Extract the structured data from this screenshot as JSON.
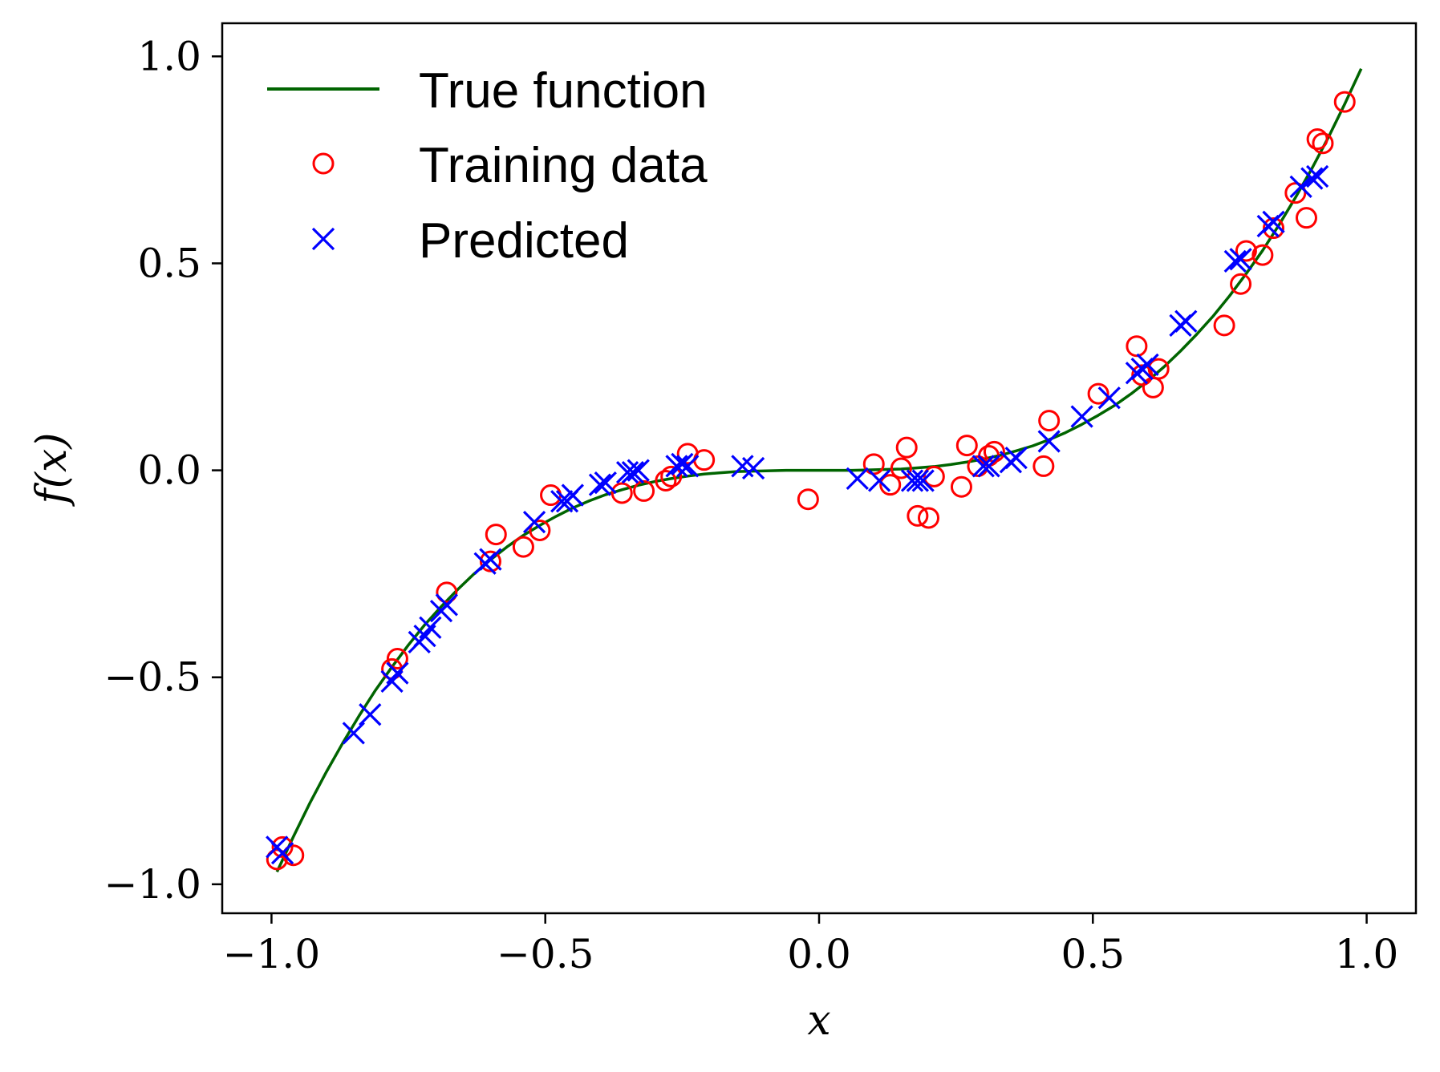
{
  "chart_data": {
    "type": "scatter",
    "title": "",
    "xlabel": "x",
    "ylabel": "f(x)",
    "xlim": [
      -1.09,
      1.09
    ],
    "ylim": [
      -1.07,
      1.08
    ],
    "xticks": [
      -1.0,
      -0.5,
      0.0,
      0.5,
      1.0
    ],
    "yticks": [
      -1.0,
      -0.5,
      0.0,
      0.5,
      1.0
    ],
    "xtick_labels": [
      "−1.0",
      "−0.5",
      "0.0",
      "0.5",
      "1.0"
    ],
    "ytick_labels": [
      "−1.0",
      "−0.5",
      "0.0",
      "0.5",
      "1.0"
    ],
    "grid": false,
    "legend_position": "top-left",
    "series": [
      {
        "name": "True function",
        "kind": "line",
        "color": "#006400",
        "x": [
          -0.99,
          -0.96,
          -0.93,
          -0.9,
          -0.87,
          -0.84,
          -0.81,
          -0.78,
          -0.75,
          -0.72,
          -0.69,
          -0.66,
          -0.63,
          -0.6,
          -0.57,
          -0.54,
          -0.51,
          -0.48,
          -0.45,
          -0.42,
          -0.39,
          -0.36,
          -0.33,
          -0.3,
          -0.27,
          -0.24,
          -0.21,
          -0.18,
          -0.15,
          -0.12,
          -0.09,
          -0.06,
          -0.03,
          0.0,
          0.03,
          0.06,
          0.09,
          0.12,
          0.15,
          0.18,
          0.21,
          0.24,
          0.27,
          0.3,
          0.33,
          0.36,
          0.39,
          0.42,
          0.45,
          0.48,
          0.51,
          0.54,
          0.57,
          0.6,
          0.63,
          0.66,
          0.69,
          0.72,
          0.75,
          0.78,
          0.81,
          0.84,
          0.87,
          0.9,
          0.93,
          0.96,
          0.99
        ],
        "y": [
          -0.97,
          -0.885,
          -0.804,
          -0.729,
          -0.659,
          -0.593,
          -0.531,
          -0.475,
          -0.422,
          -0.373,
          -0.329,
          -0.288,
          -0.25,
          -0.216,
          -0.185,
          -0.157,
          -0.133,
          -0.111,
          -0.091,
          -0.074,
          -0.059,
          -0.047,
          -0.036,
          -0.027,
          -0.02,
          -0.014,
          -0.009,
          -0.006,
          -0.003,
          -0.002,
          -0.001,
          0.0,
          0.0,
          0.0,
          0.0,
          0.0,
          0.001,
          0.002,
          0.003,
          0.006,
          0.009,
          0.014,
          0.02,
          0.027,
          0.036,
          0.047,
          0.059,
          0.074,
          0.091,
          0.111,
          0.133,
          0.157,
          0.185,
          0.216,
          0.25,
          0.288,
          0.329,
          0.373,
          0.422,
          0.475,
          0.531,
          0.593,
          0.659,
          0.729,
          0.804,
          0.885,
          0.97
        ]
      },
      {
        "name": "Training data",
        "kind": "marker-circle",
        "color": "#ff0000",
        "points": [
          [
            -0.99,
            -0.94
          ],
          [
            -0.98,
            -0.91
          ],
          [
            -0.96,
            -0.93
          ],
          [
            -0.78,
            -0.48
          ],
          [
            -0.77,
            -0.455
          ],
          [
            -0.68,
            -0.295
          ],
          [
            -0.6,
            -0.22
          ],
          [
            -0.59,
            -0.155
          ],
          [
            -0.54,
            -0.185
          ],
          [
            -0.51,
            -0.145
          ],
          [
            -0.49,
            -0.06
          ],
          [
            -0.36,
            -0.055
          ],
          [
            -0.32,
            -0.05
          ],
          [
            -0.28,
            -0.025
          ],
          [
            -0.27,
            -0.015
          ],
          [
            -0.24,
            0.04
          ],
          [
            -0.21,
            0.025
          ],
          [
            -0.02,
            -0.07
          ],
          [
            0.1,
            0.015
          ],
          [
            0.13,
            -0.035
          ],
          [
            0.15,
            0.005
          ],
          [
            0.16,
            0.055
          ],
          [
            0.18,
            -0.11
          ],
          [
            0.2,
            -0.115
          ],
          [
            0.21,
            -0.015
          ],
          [
            0.26,
            -0.04
          ],
          [
            0.27,
            0.06
          ],
          [
            0.29,
            0.01
          ],
          [
            0.31,
            0.035
          ],
          [
            0.32,
            0.045
          ],
          [
            0.41,
            0.01
          ],
          [
            0.42,
            0.12
          ],
          [
            0.51,
            0.185
          ],
          [
            0.58,
            0.3
          ],
          [
            0.59,
            0.23
          ],
          [
            0.61,
            0.2
          ],
          [
            0.62,
            0.245
          ],
          [
            0.74,
            0.35
          ],
          [
            0.77,
            0.45
          ],
          [
            0.78,
            0.53
          ],
          [
            0.81,
            0.52
          ],
          [
            0.83,
            0.585
          ],
          [
            0.87,
            0.67
          ],
          [
            0.89,
            0.61
          ],
          [
            0.91,
            0.8
          ],
          [
            0.92,
            0.79
          ],
          [
            0.96,
            0.89
          ]
        ]
      },
      {
        "name": "Predicted",
        "kind": "marker-x",
        "color": "#0000ff",
        "points": [
          [
            -0.99,
            -0.91
          ],
          [
            -0.98,
            -0.925
          ],
          [
            -0.85,
            -0.635
          ],
          [
            -0.82,
            -0.59
          ],
          [
            -0.78,
            -0.51
          ],
          [
            -0.77,
            -0.49
          ],
          [
            -0.73,
            -0.415
          ],
          [
            -0.72,
            -0.4
          ],
          [
            -0.71,
            -0.38
          ],
          [
            -0.69,
            -0.34
          ],
          [
            -0.68,
            -0.325
          ],
          [
            -0.61,
            -0.225
          ],
          [
            -0.6,
            -0.215
          ],
          [
            -0.52,
            -0.125
          ],
          [
            -0.47,
            -0.075
          ],
          [
            -0.46,
            -0.075
          ],
          [
            -0.45,
            -0.06
          ],
          [
            -0.4,
            -0.035
          ],
          [
            -0.39,
            -0.03
          ],
          [
            -0.35,
            -0.005
          ],
          [
            -0.34,
            -0.005
          ],
          [
            -0.33,
            0.0
          ],
          [
            -0.26,
            0.01
          ],
          [
            -0.25,
            0.015
          ],
          [
            -0.24,
            0.01
          ],
          [
            -0.14,
            0.01
          ],
          [
            -0.12,
            0.005
          ],
          [
            0.07,
            -0.02
          ],
          [
            0.11,
            -0.025
          ],
          [
            0.17,
            -0.025
          ],
          [
            0.18,
            -0.025
          ],
          [
            0.19,
            -0.025
          ],
          [
            0.3,
            0.01
          ],
          [
            0.31,
            0.01
          ],
          [
            0.35,
            0.02
          ],
          [
            0.36,
            0.03
          ],
          [
            0.42,
            0.07
          ],
          [
            0.48,
            0.13
          ],
          [
            0.53,
            0.175
          ],
          [
            0.58,
            0.235
          ],
          [
            0.59,
            0.245
          ],
          [
            0.6,
            0.255
          ],
          [
            0.66,
            0.35
          ],
          [
            0.67,
            0.36
          ],
          [
            0.76,
            0.505
          ],
          [
            0.77,
            0.51
          ],
          [
            0.82,
            0.59
          ],
          [
            0.83,
            0.6
          ],
          [
            0.88,
            0.685
          ],
          [
            0.9,
            0.705
          ],
          [
            0.91,
            0.71
          ]
        ]
      }
    ]
  }
}
